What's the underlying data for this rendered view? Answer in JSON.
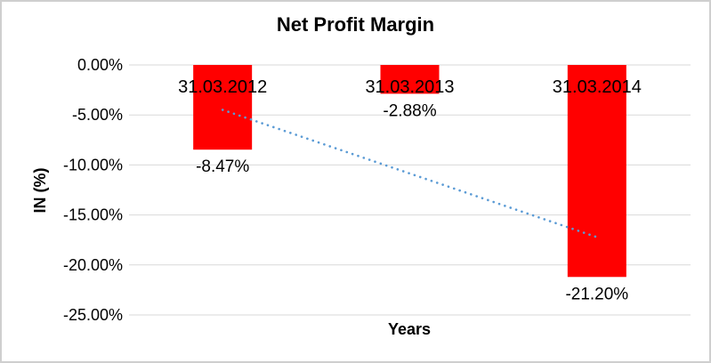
{
  "chart_data": {
    "type": "bar",
    "title": "Net Profit Margin",
    "xlabel": "Years",
    "ylabel": "IN (%)",
    "categories": [
      "31.03.2012",
      "31.03.2013",
      "31.03.2014"
    ],
    "series": [
      {
        "name": "Net Profit Margin",
        "values": [
          -8.47,
          -2.88,
          -21.2
        ],
        "value_labels": [
          "-8.47%",
          "-2.88%",
          "-21.20%"
        ],
        "color": "#FF0000"
      }
    ],
    "yticks": [
      {
        "value": 0,
        "label": "0.00%"
      },
      {
        "value": -5,
        "label": "-5.00%"
      },
      {
        "value": -10,
        "label": "-10.00%"
      },
      {
        "value": -15,
        "label": "-15.00%"
      },
      {
        "value": -20,
        "label": "-20.00%"
      },
      {
        "value": -25,
        "label": "-25.00%"
      }
    ],
    "ylim": [
      -25,
      0
    ],
    "grid": true,
    "gridline_color": "#D9D9D9",
    "legend_position": "none",
    "trendline": {
      "type": "linear",
      "style": "dotted",
      "color": "#5B9BD5",
      "start_value": -4.49,
      "end_value": -17.22
    }
  }
}
